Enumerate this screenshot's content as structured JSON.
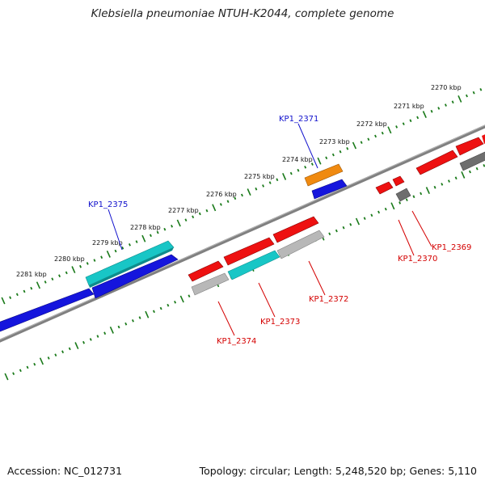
{
  "title": "Klebsiella pneumoniae NTUH-K2044, complete genome",
  "footer": {
    "accession": "Accession: NC_012731",
    "summary": "Topology: circular; Length: 5,248,520 bp; Genes: 5,110"
  },
  "ruler": {
    "labels": [
      "2270 kbp",
      "2271 kbp",
      "2272 kbp",
      "2273 kbp",
      "2274 kbp",
      "2275 kbp",
      "2276 kbp",
      "2277 kbp",
      "2278 kbp",
      "2279 kbp",
      "2280 kbp",
      "2281 kbp"
    ]
  },
  "gene_labels": {
    "kp1_2375": "KP1_2375",
    "kp1_2371": "KP1_2371",
    "kp1_2369": "KP1_2369",
    "kp1_2370": "KP1_2370",
    "kp1_2372": "KP1_2372",
    "kp1_2373": "KP1_2373",
    "kp1_2374": "KP1_2374"
  },
  "colors": {
    "backbone": "#808080",
    "tick": "#1a7a1a",
    "forward_label": "#1010cc",
    "reverse_label": "#d40000",
    "red": "#ee1111",
    "blue": "#1515dd",
    "cyan": "#18c6c6",
    "orange": "#f08a10",
    "gray": "#b8b8b8",
    "darkgray": "#6e6e6e"
  }
}
